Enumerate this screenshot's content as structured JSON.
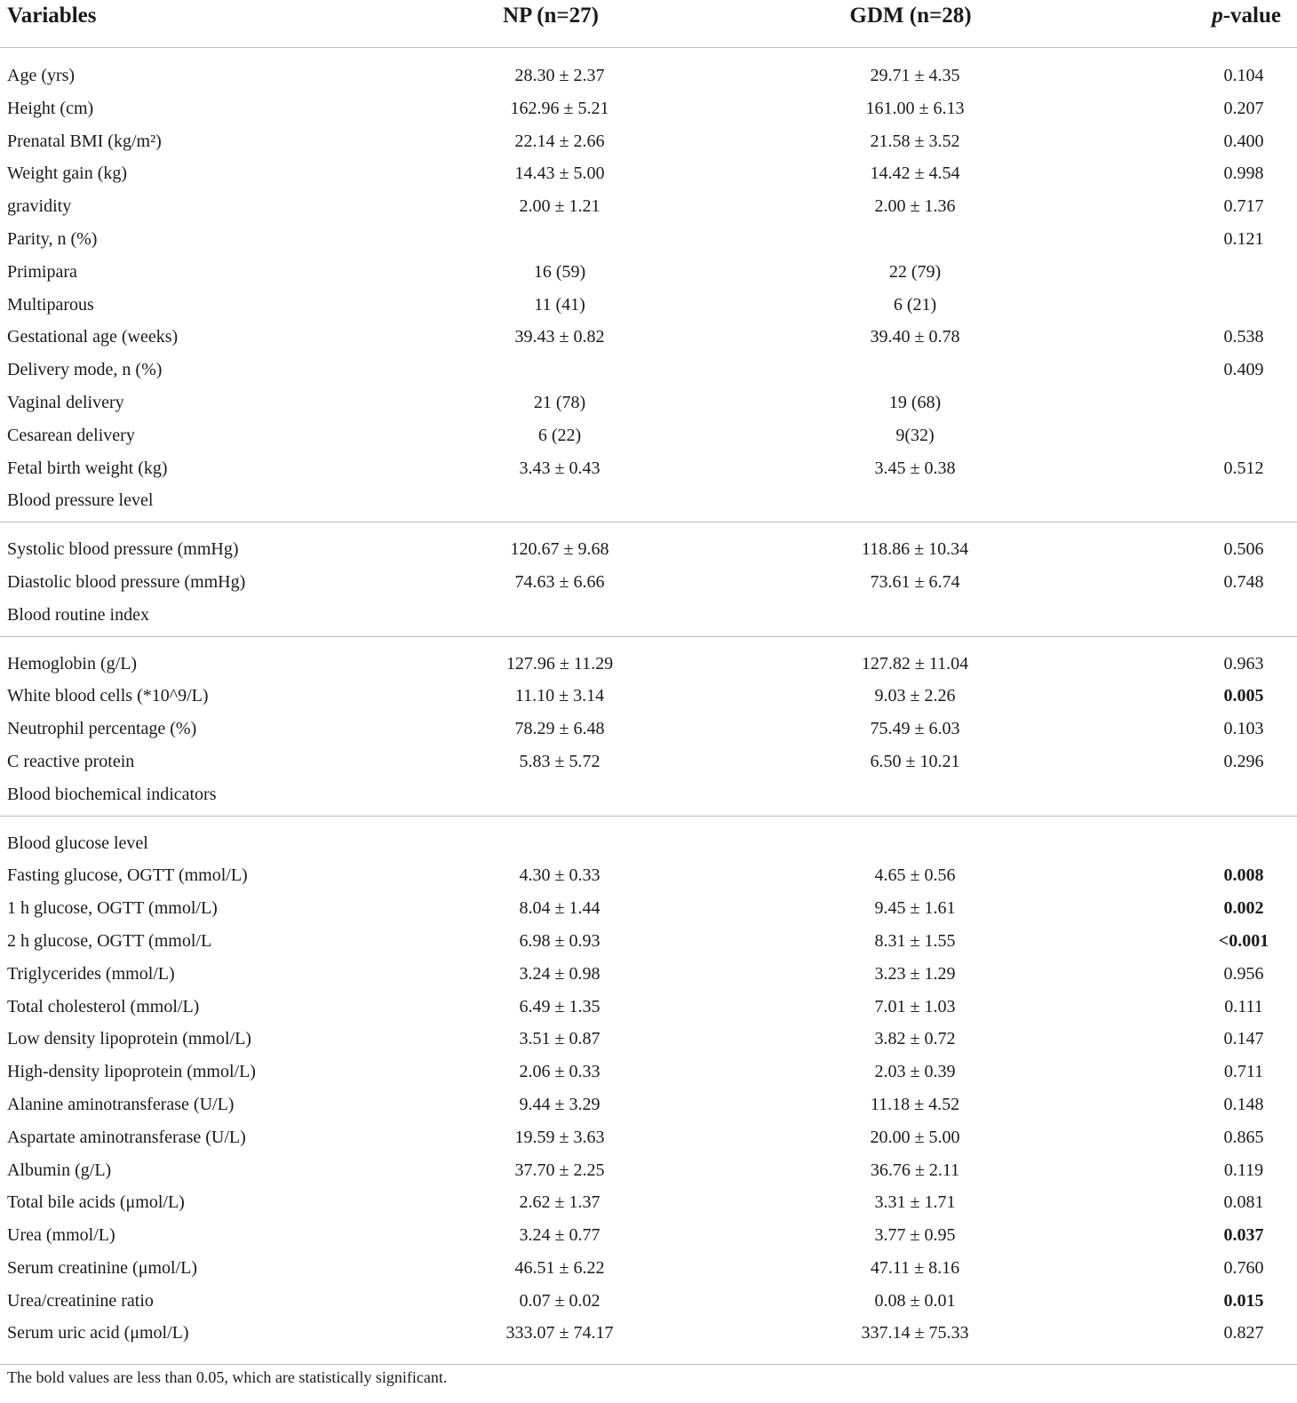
{
  "header": [
    "Variables",
    "NP (n=27)",
    "GDM (n=28)",
    "p-value"
  ],
  "table": {
    "sections": [
      [
        {
          "variable": "Age (yrs)",
          "np": "28.30 ± 2.37",
          "gdm": "29.71 ± 4.35",
          "p": "0.104"
        },
        {
          "variable": "Height (cm)",
          "np": "162.96 ± 5.21",
          "gdm": "161.00 ± 6.13",
          "p": "0.207"
        },
        {
          "variable": "Prenatal BMI (kg/m²)",
          "np": "22.14 ± 2.66",
          "gdm": "21.58 ± 3.52",
          "p": "0.400"
        },
        {
          "variable": "Weight gain (kg)",
          "np": "14.43 ± 5.00",
          "gdm": "14.42 ± 4.54",
          "p": "0.998"
        },
        {
          "variable": "gravidity",
          "np": "2.00 ± 1.21",
          "gdm": "2.00 ± 1.36",
          "p": "0.717"
        },
        {
          "variable": "Parity, n (%)",
          "p": "0.121"
        },
        {
          "variable": "Primipara",
          "np": "16 (59)",
          "gdm": "22 (79)"
        },
        {
          "variable": "Multiparous",
          "np": "11 (41)",
          "gdm": "6 (21)"
        },
        {
          "variable": "Gestational age (weeks)",
          "np": "39.43 ± 0.82",
          "gdm": "39.40 ± 0.78",
          "p": "0.538"
        },
        {
          "variable": "Delivery mode, n (%)",
          "p": "0.409"
        },
        {
          "variable": "Vaginal delivery",
          "np": "21 (78)",
          "gdm": "19 (68)"
        },
        {
          "variable": "Cesarean delivery",
          "np": "6 (22)",
          "gdm": "9(32)"
        },
        {
          "variable": "Fetal birth weight (kg)",
          "np": "3.43 ± 0.43",
          "gdm": "3.45 ± 0.38",
          "p": "0.512"
        },
        {
          "variable": "Blood pressure level"
        }
      ],
      [
        {
          "variable": "Systolic blood pressure (mmHg)",
          "np": "120.67 ± 9.68",
          "gdm": "118.86 ± 10.34",
          "p": "0.506"
        },
        {
          "variable": "Diastolic blood pressure (mmHg)",
          "np": "74.63 ± 6.66",
          "gdm": "73.61 ± 6.74",
          "p": "0.748"
        },
        {
          "variable": "Blood routine index"
        }
      ],
      [
        {
          "variable": "Hemoglobin (g/L)",
          "np": "127.96 ± 11.29",
          "gdm": "127.82 ± 11.04",
          "p": "0.963"
        },
        {
          "variable": "White blood cells (*10^9/L)",
          "np": "11.10 ± 3.14",
          "gdm": "9.03 ± 2.26",
          "p": "0.005",
          "bold": true
        },
        {
          "variable": "Neutrophil percentage (%)",
          "np": "78.29 ± 6.48",
          "gdm": "75.49 ± 6.03",
          "p": "0.103"
        },
        {
          "variable": "C reactive protein",
          "np": "5.83 ± 5.72",
          "gdm": "6.50 ± 10.21",
          "p": "0.296"
        },
        {
          "variable": "Blood biochemical indicators"
        }
      ],
      [
        {
          "variable": "Blood glucose level"
        },
        {
          "variable": "Fasting glucose, OGTT (mmol/L)",
          "np": "4.30 ± 0.33",
          "gdm": "4.65 ± 0.56",
          "p": "0.008",
          "bold": true
        },
        {
          "variable": "1 h glucose, OGTT (mmol/L)",
          "np": "8.04 ± 1.44",
          "gdm": "9.45 ± 1.61",
          "p": "0.002",
          "bold": true
        },
        {
          "variable": "2 h glucose, OGTT (mmol/L",
          "np": "6.98 ± 0.93",
          "gdm": "8.31 ± 1.55",
          "p": "<0.001",
          "bold": true
        },
        {
          "variable": "Triglycerides (mmol/L)",
          "np": "3.24 ± 0.98",
          "gdm": "3.23 ± 1.29",
          "p": "0.956"
        },
        {
          "variable": "Total cholesterol (mmol/L)",
          "np": "6.49 ± 1.35",
          "gdm": "7.01 ± 1.03",
          "p": "0.111"
        },
        {
          "variable": "Low density lipoprotein (mmol/L)",
          "np": "3.51 ± 0.87",
          "gdm": "3.82 ± 0.72",
          "p": "0.147"
        },
        {
          "variable": "High-density lipoprotein (mmol/L)",
          "np": "2.06 ± 0.33",
          "gdm": "2.03 ± 0.39",
          "p": "0.711"
        },
        {
          "variable": "Alanine aminotransferase (U/L)",
          "np": "9.44 ± 3.29",
          "gdm": "11.18 ± 4.52",
          "p": "0.148"
        },
        {
          "variable": "Aspartate aminotransferase (U/L)",
          "np": "19.59 ± 3.63",
          "gdm": "20.00 ± 5.00",
          "p": "0.865"
        },
        {
          "variable": "Albumin (g/L)",
          "np": "37.70 ± 2.25",
          "gdm": "36.76 ± 2.11",
          "p": "0.119"
        },
        {
          "variable": "Total bile acids (μmol/L)",
          "np": "2.62 ± 1.37",
          "gdm": "3.31 ± 1.71",
          "p": "0.081"
        },
        {
          "variable": "Urea (mmol/L)",
          "np": "3.24 ± 0.77",
          "gdm": "3.77 ± 0.95",
          "p": "0.037",
          "bold": true
        },
        {
          "variable": "Serum creatinine (μmol/L)",
          "np": "46.51 ± 6.22",
          "gdm": "47.11 ± 8.16",
          "p": "0.760"
        },
        {
          "variable": "Urea/creatinine ratio",
          "np": "0.07 ± 0.02",
          "gdm": "0.08 ± 0.01",
          "p": "0.015",
          "bold": true
        },
        {
          "variable": "Serum uric acid (μmol/L)",
          "np": "333.07 ± 74.17",
          "gdm": "337.14 ± 75.33",
          "p": "0.827"
        }
      ]
    ]
  },
  "footnote": "The bold values are less than 0.05, which are statistically significant."
}
